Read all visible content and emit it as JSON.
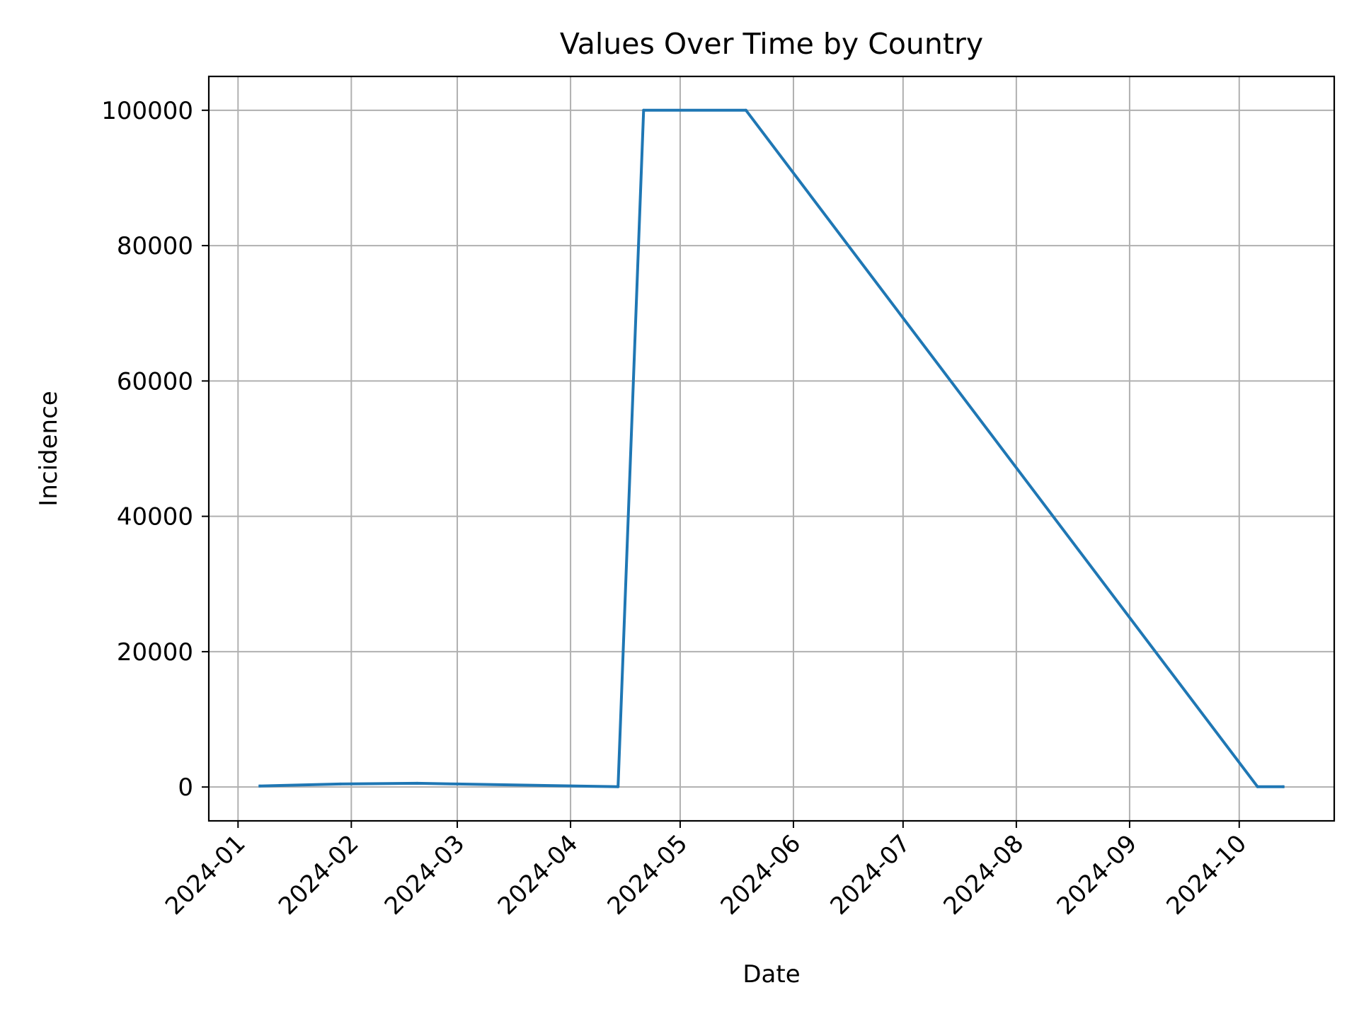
{
  "chart_data": {
    "type": "line",
    "title": "Values Over Time by Country",
    "xlabel": "Date",
    "ylabel": "Incidence",
    "x_ticks": [
      "2024-01-01",
      "2024-02-01",
      "2024-03-01",
      "2024-04-01",
      "2024-05-01",
      "2024-06-01",
      "2024-07-01",
      "2024-08-01",
      "2024-09-01",
      "2024-10-01"
    ],
    "x_tick_labels": [
      "2024-01",
      "2024-02",
      "2024-03",
      "2024-04",
      "2024-05",
      "2024-06",
      "2024-07",
      "2024-08",
      "2024-09",
      "2024-10"
    ],
    "xlim": [
      "2023-12-24",
      "2024-10-27"
    ],
    "y_ticks": [
      0,
      20000,
      40000,
      60000,
      80000,
      100000
    ],
    "y_tick_labels": [
      "0",
      "20000",
      "40000",
      "60000",
      "80000",
      "100000"
    ],
    "ylim": [
      -5000,
      105000
    ],
    "grid": true,
    "legend": false,
    "series": [
      {
        "color": "#1f77b4",
        "x": [
          "2024-01-07",
          "2024-01-29",
          "2024-02-19",
          "2024-03-01",
          "2024-04-14",
          "2024-04-21",
          "2024-05-19",
          "2024-10-06",
          "2024-10-13"
        ],
        "y": [
          150,
          450,
          550,
          450,
          50,
          100000,
          100000,
          50,
          50
        ]
      }
    ]
  }
}
